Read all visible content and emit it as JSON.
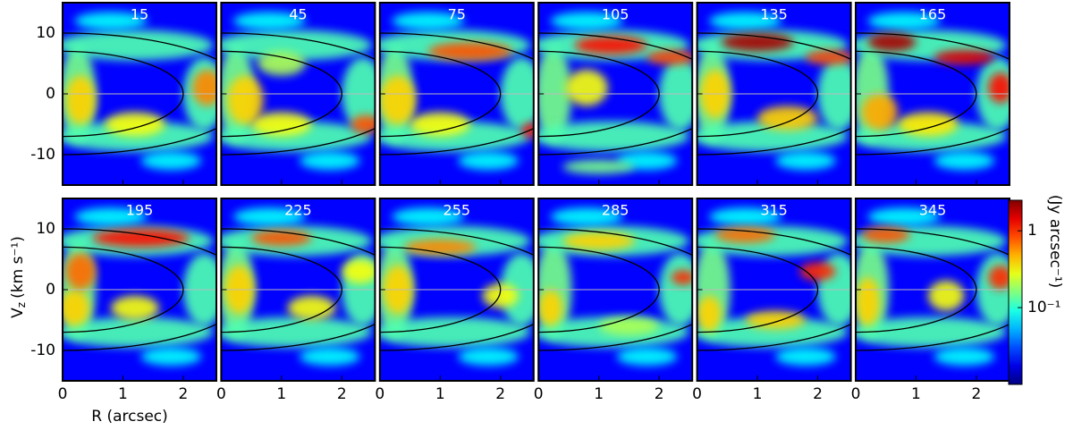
{
  "chart_data": {
    "type": "heatmap-panels",
    "x_label": "R (arcsec)",
    "y_label": {
      "symbol": "V",
      "sub": "z",
      "unit": "(km s⁻¹)"
    },
    "colorbar_label": "(Jy arcsec⁻¹)",
    "xlim": [
      0,
      2.55
    ],
    "ylim": [
      -15,
      15
    ],
    "xticks": [
      0,
      1,
      2
    ],
    "yticks": [
      -10,
      0,
      10
    ],
    "clim": [
      0.01,
      2.5
    ],
    "log_color": true,
    "colormap": "jet",
    "cticks": [
      1,
      {
        "value": 0.1,
        "label": "10⁻¹"
      }
    ],
    "background": 0.02,
    "hline": 0,
    "curves": [
      {
        "r": 2,
        "v": 7
      },
      {
        "r": 3.1,
        "v": 10
      }
    ],
    "common_blobs": [
      [
        0.25,
        0,
        0.3,
        8,
        0.15
      ],
      [
        1.2,
        8,
        1.3,
        2.5,
        0.12
      ],
      [
        1.2,
        -7,
        1.3,
        2.5,
        0.12
      ],
      [
        2.35,
        0,
        0.35,
        6,
        0.12
      ],
      [
        0.8,
        12,
        0.6,
        1.5,
        0.08
      ],
      [
        1.8,
        -11,
        0.5,
        1.5,
        0.08
      ]
    ],
    "panels": [
      {
        "label": "15",
        "blobs": [
          [
            1.2,
            -5,
            0.5,
            2,
            0.3
          ],
          [
            0.3,
            -1,
            0.25,
            4,
            0.4
          ],
          [
            2.4,
            1,
            0.25,
            3,
            0.6
          ]
        ]
      },
      {
        "label": "45",
        "blobs": [
          [
            1.0,
            5,
            0.4,
            2,
            0.2
          ],
          [
            1.0,
            -5,
            0.5,
            2,
            0.3
          ],
          [
            0.4,
            -1,
            0.3,
            4,
            0.4
          ],
          [
            2.4,
            -5,
            0.25,
            1.5,
            0.8
          ]
        ]
      },
      {
        "label": "75",
        "blobs": [
          [
            1.0,
            -5,
            0.5,
            2,
            0.3
          ],
          [
            0.3,
            -1,
            0.3,
            4,
            0.4
          ],
          [
            1.5,
            7,
            0.7,
            1.5,
            0.8
          ],
          [
            2.5,
            -6,
            0.15,
            1.2,
            1.0
          ]
        ]
      },
      {
        "label": "105",
        "blobs": [
          [
            1.0,
            -12,
            0.6,
            1.2,
            0.15
          ],
          [
            0.8,
            1,
            0.35,
            3,
            0.3
          ],
          [
            2.2,
            6,
            0.4,
            1.2,
            0.8
          ],
          [
            1.2,
            8,
            0.6,
            1.5,
            1.2
          ]
        ]
      },
      {
        "label": "135",
        "blobs": [
          [
            0.3,
            0,
            0.25,
            4,
            0.4
          ],
          [
            1.5,
            -4,
            0.5,
            2,
            0.4
          ],
          [
            2.2,
            6,
            0.4,
            1.2,
            0.8
          ],
          [
            1.0,
            8.5,
            0.6,
            1.5,
            2.0
          ]
        ]
      },
      {
        "label": "165",
        "blobs": [
          [
            1.2,
            -5,
            0.5,
            2,
            0.35
          ],
          [
            0.4,
            -3,
            0.3,
            3,
            0.5
          ],
          [
            2.4,
            1,
            0.2,
            2.5,
            1.2
          ],
          [
            1.8,
            6,
            0.5,
            1.2,
            1.5
          ],
          [
            0.6,
            8.5,
            0.4,
            1.5,
            2.0
          ]
        ]
      },
      {
        "label": "195",
        "blobs": [
          [
            1.2,
            -3,
            0.4,
            2,
            0.3
          ],
          [
            0.2,
            -3,
            0.25,
            3,
            0.4
          ],
          [
            0.3,
            3,
            0.25,
            3,
            0.7
          ],
          [
            1.3,
            8.5,
            0.8,
            1.5,
            1.2
          ]
        ]
      },
      {
        "label": "225",
        "blobs": [
          [
            1.5,
            -3,
            0.4,
            2,
            0.3
          ],
          [
            2.3,
            3,
            0.3,
            2,
            0.3
          ],
          [
            0.3,
            0,
            0.25,
            4,
            0.4
          ],
          [
            1.0,
            8.5,
            0.5,
            1.3,
            0.8
          ]
        ]
      },
      {
        "label": "255",
        "blobs": [
          [
            2.0,
            -1,
            0.3,
            2,
            0.3
          ],
          [
            0.3,
            0,
            0.25,
            4,
            0.4
          ],
          [
            1.0,
            7,
            0.6,
            1.3,
            0.6
          ]
        ]
      },
      {
        "label": "285",
        "blobs": [
          [
            1.5,
            -6,
            0.5,
            1.5,
            0.2
          ],
          [
            1.0,
            8,
            0.6,
            1.5,
            0.4
          ],
          [
            0.2,
            -3,
            0.2,
            3,
            0.4
          ],
          [
            2.4,
            2,
            0.2,
            1.2,
            1.0
          ]
        ]
      },
      {
        "label": "315",
        "blobs": [
          [
            0.2,
            -4,
            0.2,
            3,
            0.4
          ],
          [
            1.3,
            -5,
            0.5,
            1.5,
            0.4
          ],
          [
            0.8,
            9,
            0.5,
            1.3,
            0.7
          ],
          [
            2.0,
            3,
            0.3,
            1.5,
            1.0
          ]
        ]
      },
      {
        "label": "345",
        "blobs": [
          [
            1.5,
            -1,
            0.3,
            2.5,
            0.3
          ],
          [
            0.2,
            -2,
            0.2,
            4,
            0.4
          ],
          [
            0.5,
            9,
            0.4,
            1.3,
            0.8
          ],
          [
            2.4,
            2,
            0.2,
            2,
            1.0
          ]
        ]
      }
    ]
  }
}
